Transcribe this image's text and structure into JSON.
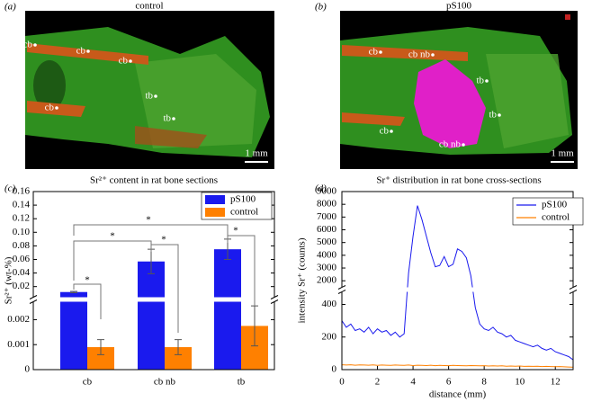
{
  "panels": [
    {
      "letter": "(a)",
      "title": "control",
      "labels": [
        "cb",
        "cb",
        "cb",
        "cb",
        "tb",
        "tb"
      ],
      "scale_bar": "1 mm"
    },
    {
      "letter": "(b)",
      "title": "pS100",
      "labels": [
        "cb",
        "cb nb",
        "tb",
        "tb",
        "cb",
        "cb nb"
      ],
      "scale_bar": "1 mm"
    }
  ],
  "chart_data": [
    {
      "type": "bar",
      "panel": "(c)",
      "title": "Sr²⁺ content in rat bone sections",
      "ylabel": "Sr²⁺ (wt-%)",
      "categories": [
        "cb",
        "cb nb",
        "tb"
      ],
      "series": [
        {
          "name": "pS100",
          "color": "#1a1aee",
          "values": [
            0.012,
            0.057,
            0.075
          ],
          "errors": [
            0.001,
            0.018,
            0.015
          ]
        },
        {
          "name": "control",
          "color": "#ff8000",
          "values": [
            0.0009,
            0.0009,
            0.00175
          ],
          "errors": [
            0.0003,
            0.0003,
            0.0008
          ]
        }
      ],
      "ylim": [
        [
          0,
          0.0027
        ],
        [
          0.005,
          0.16
        ]
      ],
      "yticks": [
        0,
        0.001,
        0.002,
        0.02,
        0.04,
        0.06,
        0.08,
        {
          "value": 0.1,
          "label": "0.10"
        },
        0.12,
        0.14,
        0.16
      ],
      "significance": [
        "*",
        "*",
        "*",
        "*",
        "*"
      ],
      "legend": "upper right"
    },
    {
      "type": "line",
      "panel": "(d)",
      "title": "Sr⁺ distribution in rat bone cross-sections",
      "xlabel": "distance (mm)",
      "ylabel": "intensity Sr⁺ (counts)",
      "x": [
        0,
        0.25,
        0.5,
        0.75,
        1,
        1.25,
        1.5,
        1.75,
        2,
        2.25,
        2.5,
        2.75,
        3,
        3.25,
        3.5,
        3.75,
        4,
        4.25,
        4.5,
        4.75,
        5,
        5.25,
        5.5,
        5.75,
        6,
        6.25,
        6.5,
        6.75,
        7,
        7.25,
        7.5,
        7.75,
        8,
        8.25,
        8.5,
        8.75,
        9,
        9.25,
        9.5,
        9.75,
        10,
        10.25,
        10.5,
        10.75,
        11,
        11.25,
        11.5,
        11.75,
        12,
        12.25,
        12.5,
        12.75,
        13
      ],
      "series": [
        {
          "name": "pS100",
          "color": "#1a1aee",
          "values": [
            300,
            260,
            280,
            240,
            250,
            230,
            260,
            220,
            250,
            230,
            240,
            210,
            230,
            200,
            220,
            2600,
            5500,
            7900,
            6800,
            5500,
            4200,
            3100,
            3200,
            3900,
            3100,
            3300,
            4500,
            4300,
            3800,
            2400,
            380,
            280,
            250,
            240,
            260,
            230,
            220,
            200,
            210,
            180,
            170,
            160,
            150,
            140,
            150,
            130,
            120,
            130,
            110,
            100,
            90,
            80,
            60
          ]
        },
        {
          "name": "control",
          "color": "#ff8000",
          "values": [
            30,
            28,
            30,
            27,
            29,
            28,
            27,
            29,
            26,
            28,
            27,
            26,
            28,
            27,
            26,
            28,
            25,
            27,
            26,
            25,
            27,
            24,
            26,
            25,
            24,
            26,
            25,
            24,
            23,
            25,
            24,
            23,
            24,
            22,
            23,
            22,
            23,
            21,
            22,
            21,
            22,
            20,
            21,
            20,
            21,
            19,
            20,
            19,
            18,
            19,
            17,
            16,
            15
          ]
        }
      ],
      "xlim": [
        0,
        13
      ],
      "xticks": [
        0,
        2,
        4,
        6,
        8,
        10,
        12
      ],
      "ylim": [
        [
          0,
          480
        ],
        [
          1450,
          9000
        ]
      ],
      "yticks": [
        0,
        200,
        400,
        2000,
        3000,
        4000,
        5000,
        6000,
        7000,
        8000,
        9000
      ],
      "legend": "upper right"
    }
  ]
}
